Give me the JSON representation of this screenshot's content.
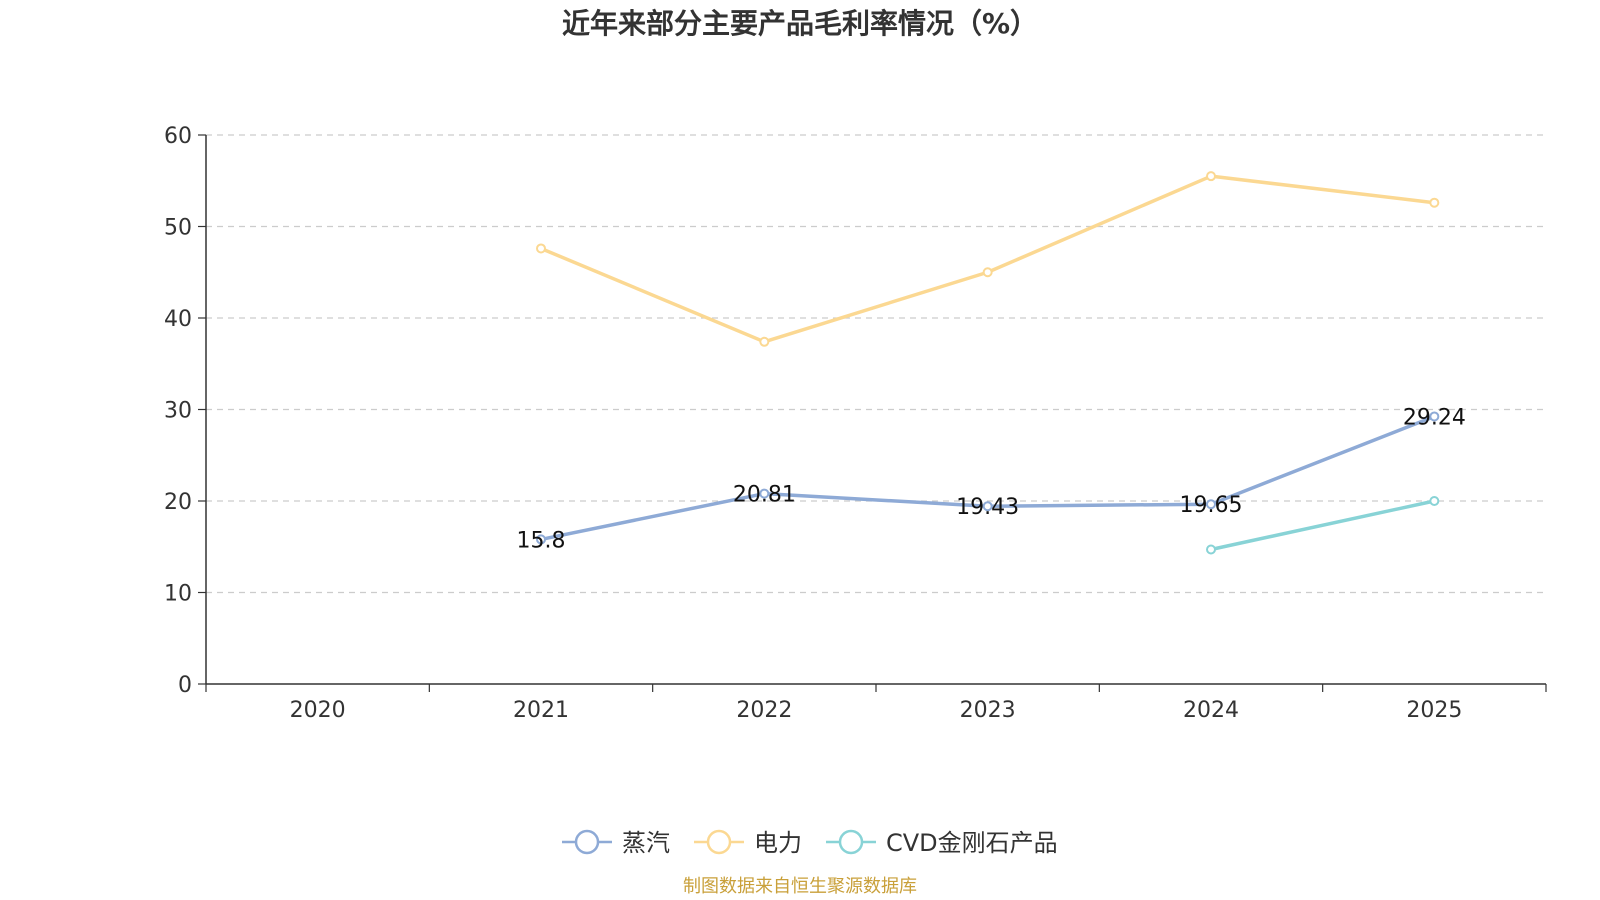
{
  "chart_data": {
    "type": "line",
    "title": "近年来部分主要产品毛利率情况（%）",
    "categories": [
      "2020",
      "2021",
      "2022",
      "2023",
      "2024",
      "2025"
    ],
    "ylim": [
      0,
      60
    ],
    "yticks": [
      0,
      10,
      20,
      30,
      40,
      50,
      60
    ],
    "grid": true,
    "legend_position": "bottom",
    "series": [
      {
        "name": "蒸汽",
        "color": "#8eaad6",
        "values": [
          null,
          15.8,
          20.81,
          19.43,
          19.65,
          29.24
        ],
        "labels": [
          "",
          "15.8",
          "20.81",
          "19.43",
          "19.65",
          "29.24"
        ]
      },
      {
        "name": "电力",
        "color": "#fbd892",
        "values": [
          null,
          47.6,
          37.4,
          45.0,
          55.5,
          52.6
        ],
        "labels": []
      },
      {
        "name": "CVD金刚石产品",
        "color": "#88d3d6",
        "values": [
          null,
          null,
          null,
          null,
          14.7,
          20.0
        ],
        "labels": []
      }
    ]
  },
  "footer": {
    "source": "制图数据来自恒生聚源数据库"
  }
}
